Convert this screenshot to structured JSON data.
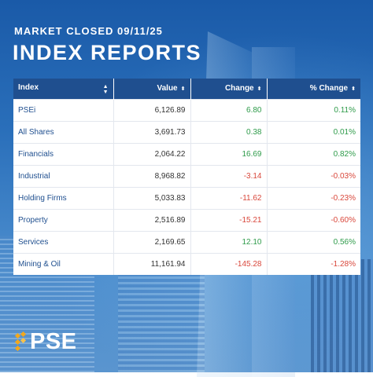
{
  "header": {
    "subtitle": "MARKET CLOSED 09/11/25",
    "title": "INDEX REPORTS"
  },
  "table": {
    "columns": [
      "Index",
      "Value",
      "Change",
      "% Change"
    ],
    "rows": [
      {
        "index": "PSEi",
        "value": "6,126.89",
        "change": "6.80",
        "pct": "0.11%",
        "direction": "up"
      },
      {
        "index": "All Shares",
        "value": "3,691.73",
        "change": "0.38",
        "pct": "0.01%",
        "direction": "up"
      },
      {
        "index": "Financials",
        "value": "2,064.22",
        "change": "16.69",
        "pct": "0.82%",
        "direction": "up"
      },
      {
        "index": "Industrial",
        "value": "8,968.82",
        "change": "-3.14",
        "pct": "-0.03%",
        "direction": "down"
      },
      {
        "index": "Holding Firms",
        "value": "5,033.83",
        "change": "-11.62",
        "pct": "-0.23%",
        "direction": "down"
      },
      {
        "index": "Property",
        "value": "2,516.89",
        "change": "-15.21",
        "pct": "-0.60%",
        "direction": "down"
      },
      {
        "index": "Services",
        "value": "2,169.65",
        "change": "12.10",
        "pct": "0.56%",
        "direction": "up"
      },
      {
        "index": "Mining & Oil",
        "value": "11,161.94",
        "change": "-145.28",
        "pct": "-1.28%",
        "direction": "down"
      }
    ]
  },
  "logo": {
    "text": "PSE"
  },
  "colors": {
    "header_bg": "#1f4f8f",
    "positive": "#2e9b4a",
    "negative": "#d9473b",
    "index_name": "#1f4f8f"
  }
}
